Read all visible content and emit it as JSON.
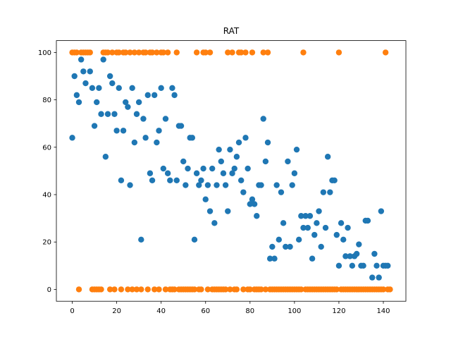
{
  "chart_data": {
    "type": "scatter",
    "title": "RAT",
    "xlabel": "",
    "ylabel": "",
    "xlim": [
      -7.15,
      150.15
    ],
    "ylim": [
      -5,
      105
    ],
    "xticks": [
      0,
      20,
      40,
      60,
      80,
      100,
      120,
      140
    ],
    "yticks": [
      0,
      20,
      40,
      60,
      80,
      100
    ],
    "grid": false,
    "legend": "none",
    "series": [
      {
        "color": "#1f77b4",
        "x": [
          0,
          1,
          2,
          3,
          4,
          5,
          6,
          8,
          9,
          10,
          11,
          12,
          13,
          14,
          15,
          16,
          17,
          18,
          19,
          20,
          21,
          22,
          23,
          24,
          25,
          26,
          27,
          28,
          29,
          30,
          31,
          32,
          33,
          34,
          35,
          36,
          37,
          38,
          39,
          40,
          41,
          42,
          43,
          44,
          45,
          46,
          47,
          48,
          49,
          50,
          51,
          52,
          53,
          54,
          55,
          56,
          57,
          58,
          59,
          60,
          61,
          62,
          63,
          64,
          65,
          66,
          67,
          68,
          69,
          70,
          71,
          72,
          73,
          74,
          75,
          76,
          77,
          78,
          79,
          80,
          81,
          82,
          83,
          84,
          85,
          86,
          87,
          88,
          89,
          90,
          91,
          92,
          93,
          94,
          95,
          96,
          97,
          98,
          99,
          100,
          101,
          102,
          103,
          104,
          105,
          106,
          107,
          108,
          109,
          110,
          111,
          112,
          113,
          114,
          115,
          116,
          117,
          118,
          119,
          120,
          121,
          122,
          123,
          124,
          125,
          126,
          127,
          128,
          129,
          130,
          131,
          132,
          133,
          135,
          136,
          137,
          138,
          139,
          140,
          141,
          142
        ],
        "y": [
          64,
          90,
          82,
          79,
          97,
          92,
          87,
          92,
          85,
          69,
          79,
          85,
          74,
          97,
          56,
          74,
          90,
          87,
          74,
          67,
          85,
          46,
          67,
          79,
          77,
          44,
          85,
          62,
          74,
          79,
          21,
          72,
          64,
          82,
          49,
          46,
          82,
          62,
          67,
          85,
          51,
          72,
          49,
          46,
          85,
          82,
          46,
          69,
          69,
          54,
          44,
          51,
          64,
          64,
          21,
          49,
          44,
          46,
          51,
          38,
          44,
          33,
          51,
          28,
          44,
          59,
          54,
          49,
          44,
          33,
          59,
          49,
          51,
          56,
          62,
          46,
          41,
          64,
          51,
          36,
          38,
          36,
          31,
          44,
          44,
          72,
          54,
          62,
          13,
          18,
          13,
          44,
          21,
          41,
          28,
          18,
          54,
          18,
          44,
          49,
          59,
          21,
          31,
          26,
          31,
          26,
          31,
          13,
          23,
          28,
          33,
          18,
          41,
          26,
          56,
          41,
          46,
          46,
          23,
          10,
          28,
          21,
          14,
          26,
          14,
          10,
          14,
          15,
          19,
          10,
          10,
          29,
          29,
          5,
          15,
          10,
          5,
          33,
          10,
          10,
          10
        ]
      },
      {
        "color": "#ff7f0e",
        "x": [
          0,
          1,
          2,
          3,
          4,
          5,
          6,
          7,
          8,
          9,
          10,
          11,
          12,
          13,
          14,
          15,
          16,
          17,
          18,
          19,
          20,
          21,
          22,
          23,
          24,
          25,
          26,
          27,
          28,
          29,
          30,
          31,
          32,
          33,
          34,
          35,
          36,
          37,
          38,
          39,
          40,
          41,
          42,
          43,
          44,
          45,
          46,
          47,
          48,
          49,
          50,
          51,
          52,
          53,
          54,
          55,
          56,
          57,
          58,
          59,
          60,
          61,
          62,
          63,
          64,
          65,
          66,
          67,
          68,
          69,
          70,
          71,
          72,
          73,
          74,
          75,
          76,
          77,
          78,
          79,
          80,
          81,
          82,
          83,
          84,
          85,
          86,
          87,
          88,
          89,
          90,
          91,
          92,
          93,
          94,
          95,
          96,
          97,
          98,
          99,
          100,
          101,
          102,
          103,
          104,
          105,
          106,
          107,
          108,
          109,
          110,
          111,
          112,
          113,
          114,
          115,
          116,
          117,
          118,
          119,
          120,
          121,
          122,
          123,
          124,
          125,
          126,
          127,
          128,
          129,
          130,
          131,
          132,
          133,
          134,
          135,
          136,
          137,
          138,
          139,
          140,
          141,
          142,
          143
        ],
        "y": [
          100,
          100,
          100,
          0,
          100,
          100,
          100,
          100,
          100,
          0,
          0,
          0,
          0,
          0,
          100,
          100,
          100,
          0,
          100,
          0,
          100,
          100,
          0,
          100,
          100,
          0,
          100,
          0,
          100,
          0,
          100,
          0,
          100,
          100,
          0,
          100,
          100,
          0,
          100,
          0,
          100,
          100,
          0,
          100,
          0,
          0,
          0,
          100,
          0,
          0,
          0,
          0,
          0,
          0,
          0,
          0,
          100,
          0,
          0,
          100,
          100,
          0,
          100,
          0,
          0,
          0,
          0,
          0,
          0,
          0,
          100,
          0,
          100,
          0,
          0,
          100,
          100,
          0,
          100,
          0,
          0,
          100,
          0,
          0,
          0,
          0,
          100,
          0,
          100,
          0,
          0,
          0,
          0,
          0,
          0,
          0,
          0,
          0,
          0,
          0,
          0,
          0,
          0,
          0,
          100,
          0,
          0,
          0,
          0,
          0,
          0,
          0,
          0,
          0,
          0,
          0,
          0,
          0,
          0,
          0,
          100,
          0,
          0,
          0,
          0,
          0,
          0,
          0,
          0,
          0,
          0,
          0,
          0,
          0,
          0,
          0,
          0,
          0,
          0,
          0,
          0,
          100,
          0,
          0
        ]
      }
    ]
  }
}
